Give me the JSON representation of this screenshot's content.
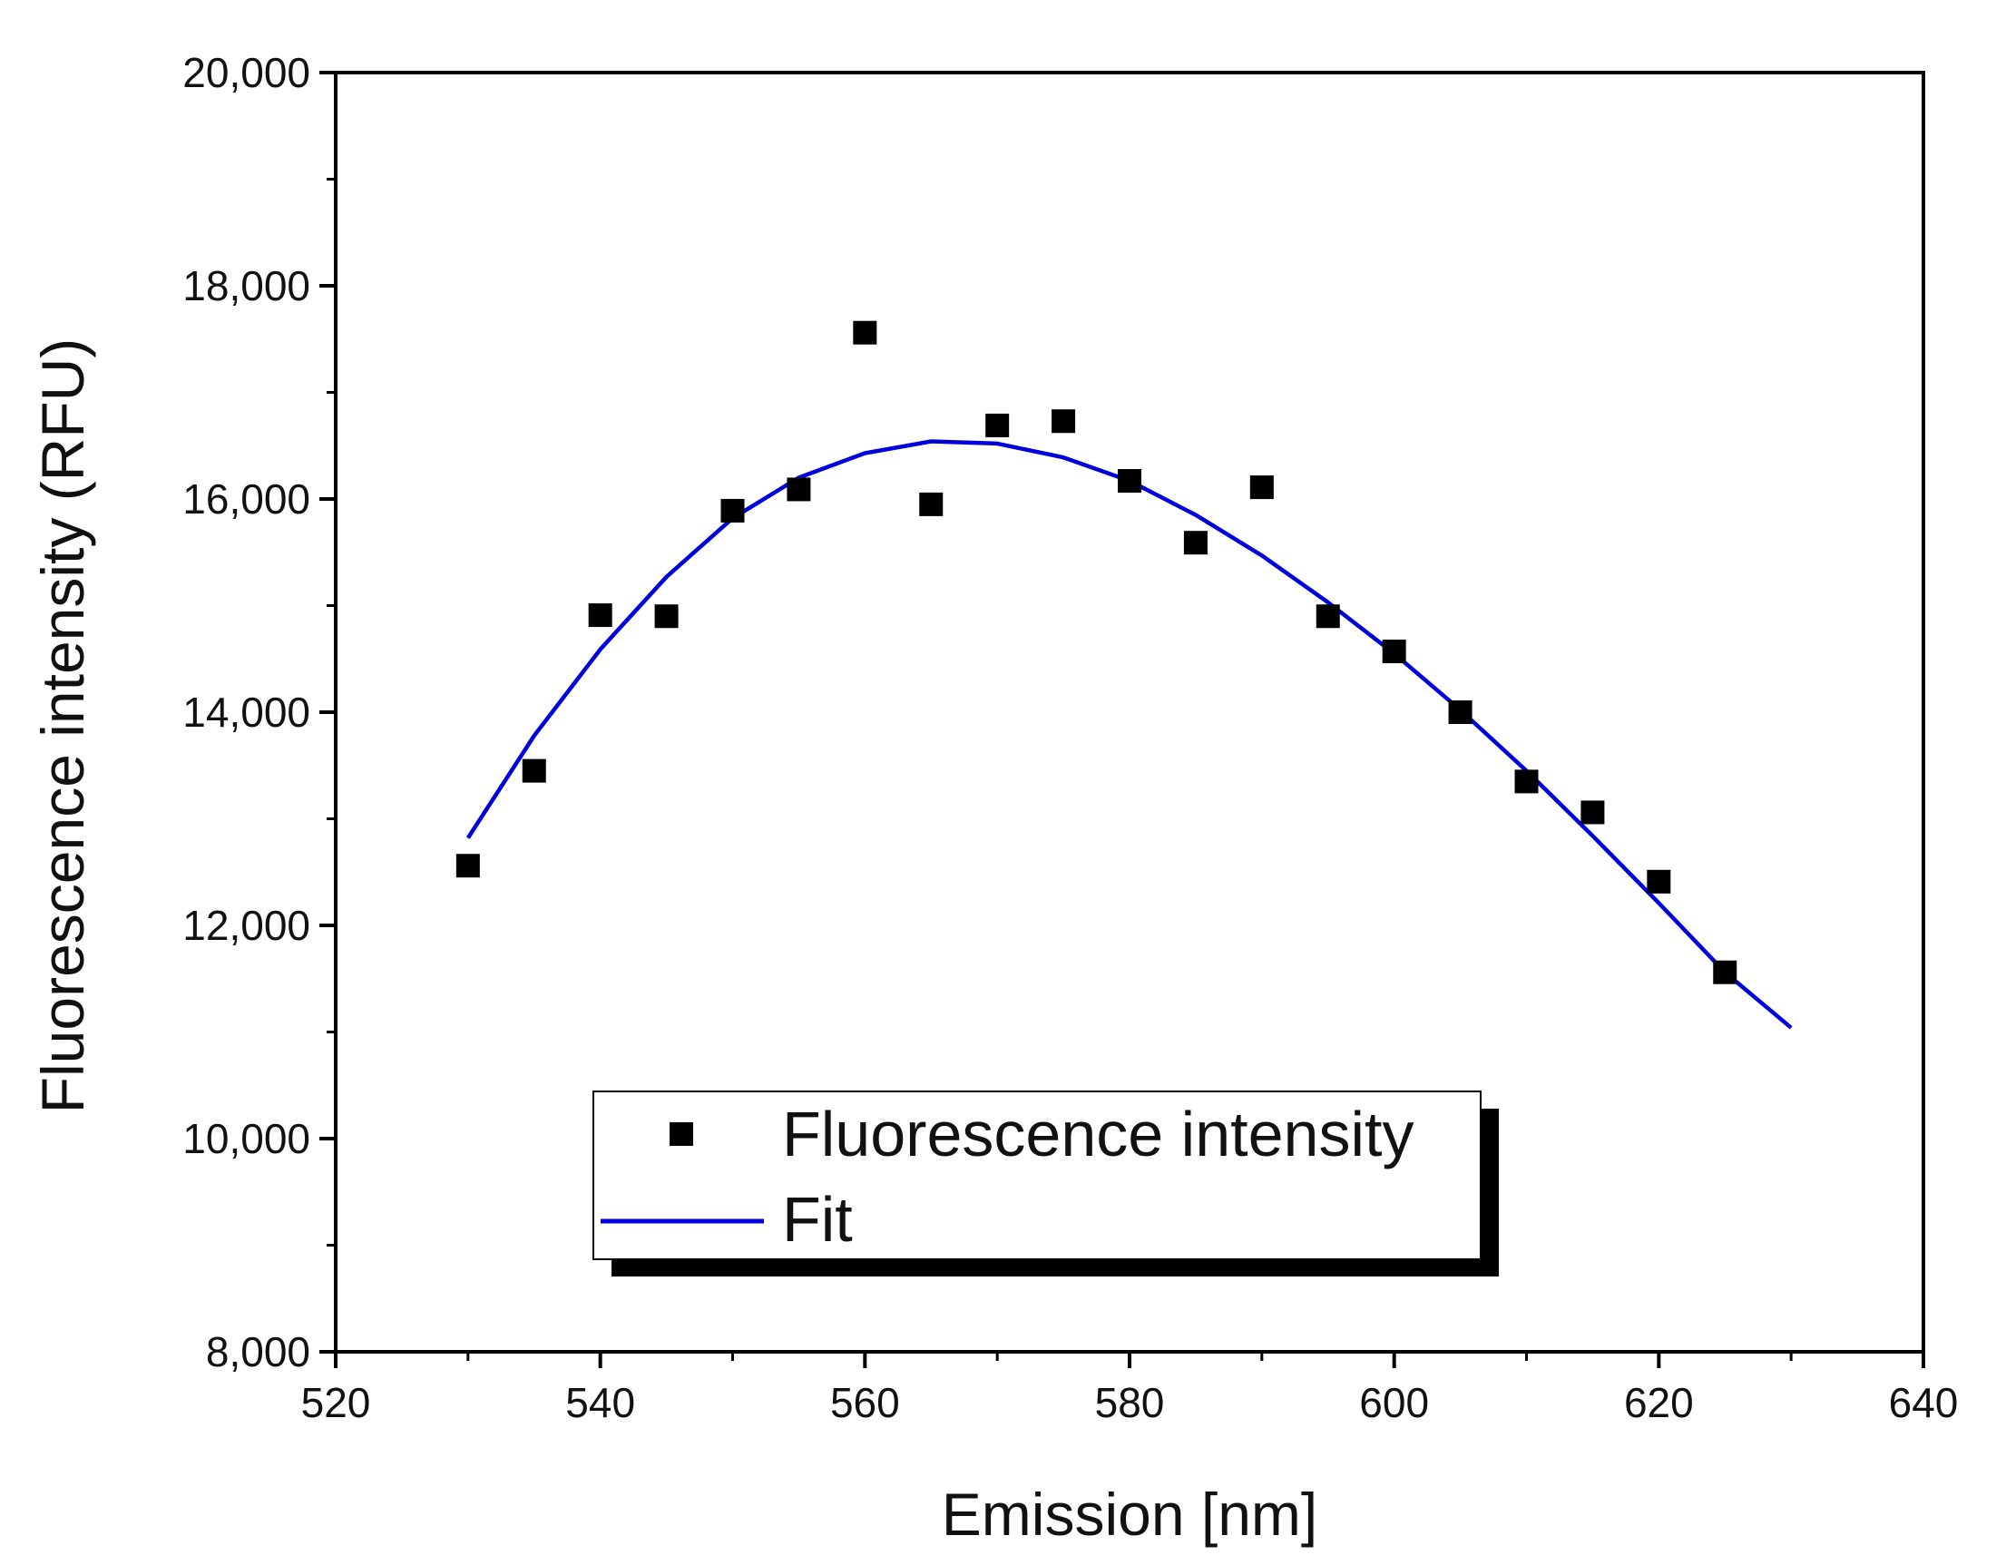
{
  "chart_data": {
    "type": "scatter",
    "title": "",
    "xlabel": "Emission [nm]",
    "ylabel": "Fluorescence intensity (RFU)",
    "xlim": [
      520,
      640
    ],
    "ylim": [
      8000,
      20000
    ],
    "x_ticks": [
      520,
      540,
      560,
      580,
      600,
      620,
      640
    ],
    "x_tick_labels": [
      "520",
      "540",
      "560",
      "580",
      "600",
      "620",
      "640"
    ],
    "y_ticks": [
      8000,
      10000,
      12000,
      14000,
      16000,
      18000,
      20000
    ],
    "y_tick_labels": [
      "8,000",
      "10,000",
      "12,000",
      "14,000",
      "16,000",
      "18,000",
      "20,000"
    ],
    "grid": false,
    "legend_position": "bottom-center",
    "series": [
      {
        "name": "Fluorescence intensity",
        "kind": "scatter",
        "marker": "square",
        "color": "#000000",
        "x": [
          530,
          535,
          540,
          545,
          550,
          555,
          560,
          565,
          570,
          575,
          580,
          585,
          590,
          595,
          600,
          605,
          610,
          615,
          620,
          625
        ],
        "y": [
          12560,
          13450,
          14910,
          14900,
          15890,
          16090,
          17560,
          15950,
          16690,
          16730,
          16170,
          15590,
          16110,
          14900,
          14570,
          14000,
          13350,
          13060,
          12410,
          11560
        ]
      },
      {
        "name": "Fit",
        "kind": "line",
        "color": "#0000dd",
        "x": [
          530,
          535,
          540,
          545,
          550,
          555,
          560,
          565,
          570,
          575,
          580,
          585,
          590,
          595,
          600,
          605,
          610,
          615,
          620,
          625,
          630
        ],
        "y": [
          12820,
          13780,
          14590,
          15270,
          15820,
          16200,
          16430,
          16540,
          16520,
          16390,
          16170,
          15850,
          15470,
          15030,
          14550,
          14020,
          13450,
          12840,
          12210,
          11560,
          11040
        ]
      }
    ]
  }
}
